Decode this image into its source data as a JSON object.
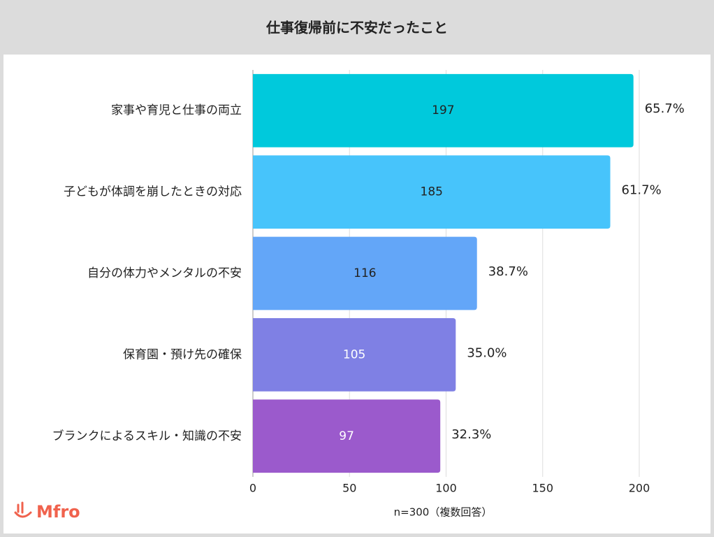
{
  "chart_data": {
    "type": "barh",
    "title": "仕事復帰前に不安だったこと",
    "categories": [
      "家事や育児と仕事の両立",
      "子どもが体調を崩したときの対応",
      "自分の体力やメンタルの不安",
      "保育園・預け先の確保",
      "ブランクによるスキル・知識の不安"
    ],
    "values": [
      197,
      185,
      116,
      105,
      97
    ],
    "colors": [
      "#00c9dc",
      "#47c4fb",
      "#63a6f8",
      "#7f80e4",
      "#9b5acc"
    ],
    "value_label_colors": [
      "#222222",
      "#222222",
      "#222222",
      "#ffffff",
      "#ffffff"
    ],
    "shares": [
      65.7,
      61.7,
      38.7,
      35.0,
      32.3
    ],
    "share_labels": [
      "65.7%",
      "61.7%",
      "38.7%",
      "35.0%",
      "32.3%"
    ],
    "xlim": [
      0,
      200
    ],
    "xticks": [
      0,
      50,
      100,
      150,
      200
    ],
    "grid": true,
    "note": "n=300（複数回答）"
  },
  "logo": "Mfro"
}
